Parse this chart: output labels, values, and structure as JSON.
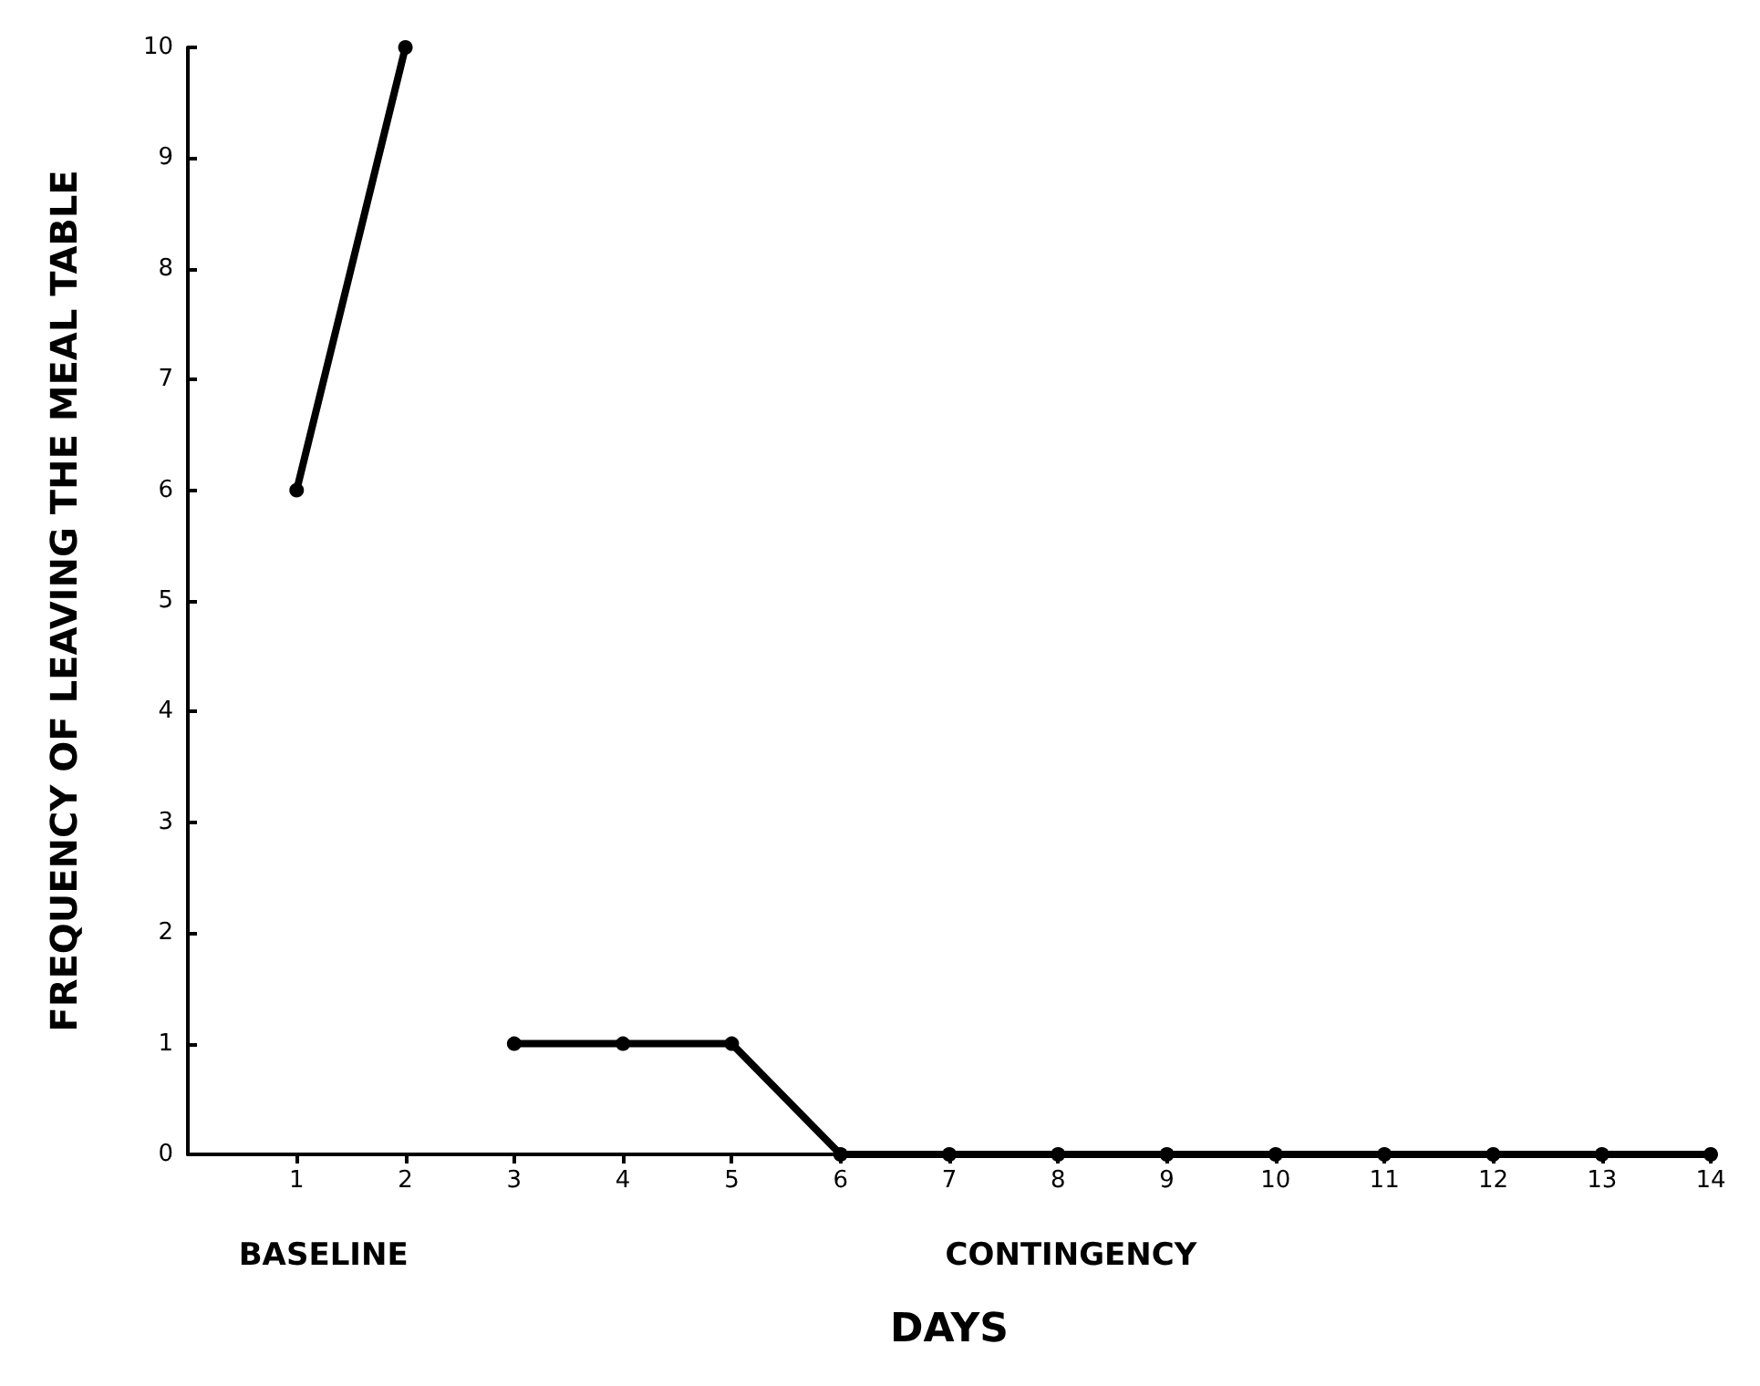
{
  "chart_data": {
    "type": "line",
    "xlabel": "DAYS",
    "ylabel": "FREQUENCY OF LEAVING THE MEAL TABLE",
    "series": [
      {
        "color": "#000000",
        "x": [
          1,
          2
        ],
        "values": [
          6,
          10
        ]
      },
      {
        "color": "#000000",
        "x": [
          3,
          4,
          5,
          6,
          7,
          8,
          9,
          10,
          11,
          12,
          13,
          14
        ],
        "values": [
          1,
          1,
          1,
          0,
          0,
          0,
          0,
          0,
          0,
          0,
          0,
          0
        ]
      }
    ],
    "xlim": [
      0,
      14
    ],
    "xticks": [
      1,
      2,
      3,
      4,
      5,
      6,
      7,
      8,
      9,
      10,
      11,
      12,
      13,
      14
    ],
    "ylim": [
      0,
      10
    ],
    "yticks": [
      0,
      1,
      2,
      3,
      4,
      5,
      6,
      7,
      8,
      9,
      10
    ],
    "annotations": [
      "BASELINE",
      "CONTINGENCY"
    ],
    "marker": "circle",
    "line_style": "solid",
    "grid": false
  }
}
